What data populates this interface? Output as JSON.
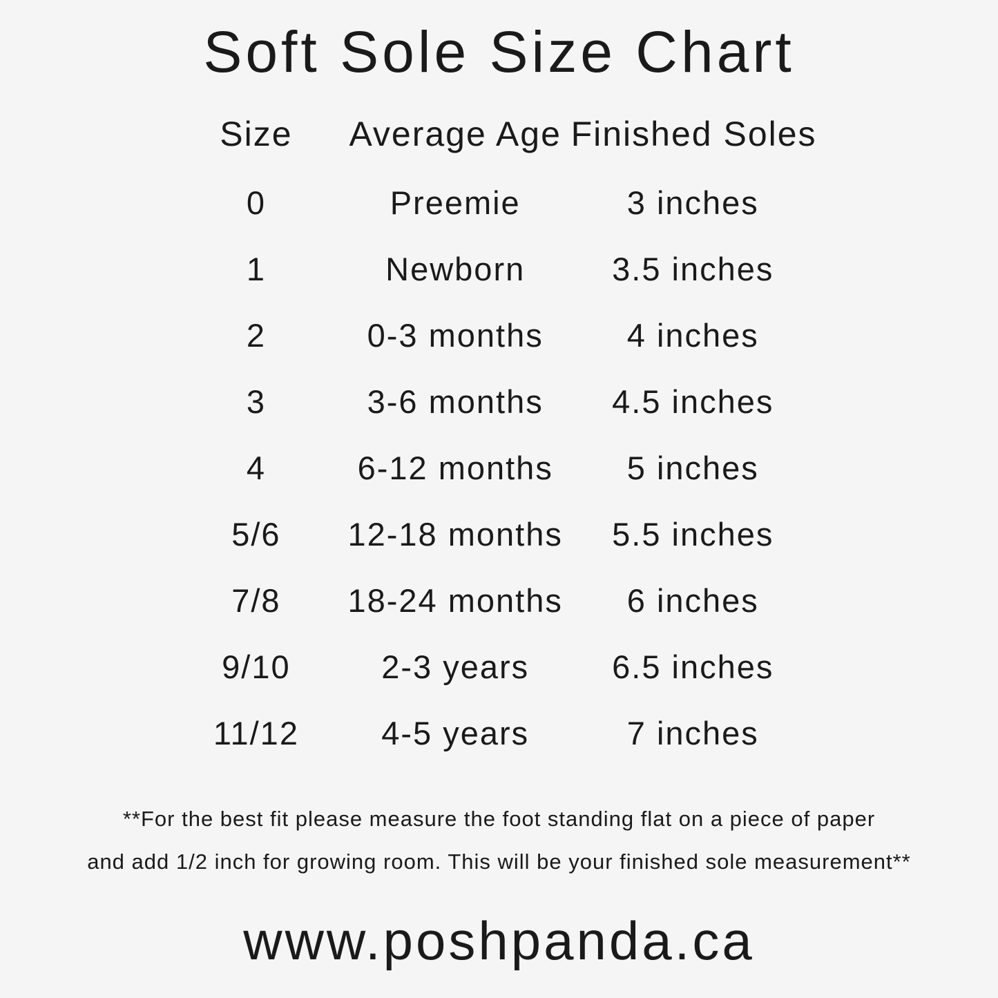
{
  "page": {
    "background_color": "#f6f5f5",
    "text_color": "#1a1a1a",
    "note_line1": "**For the best fit please measure the foot standing flat on a piece of paper",
    "note_line2": "and add 1/2 inch for growing room. This will be your finished sole measurement**",
    "website": "www.poshpanda.ca"
  },
  "chart_data": {
    "type": "table",
    "title": "Soft Sole Size Chart",
    "columns": [
      "Size",
      "Average Age",
      "Finished Soles"
    ],
    "rows": [
      [
        "0",
        "Preemie",
        "3 inches"
      ],
      [
        "1",
        "Newborn",
        "3.5 inches"
      ],
      [
        "2",
        "0-3 months",
        "4 inches"
      ],
      [
        "3",
        "3-6 months",
        "4.5 inches"
      ],
      [
        "4",
        "6-12 months",
        "5 inches"
      ],
      [
        "5/6",
        "12-18 months",
        "5.5 inches"
      ],
      [
        "7/8",
        "18-24 months",
        "6 inches"
      ],
      [
        "9/10",
        "2-3 years",
        "6.5 inches"
      ],
      [
        "11/12",
        "4-5 years",
        "7 inches"
      ]
    ]
  }
}
